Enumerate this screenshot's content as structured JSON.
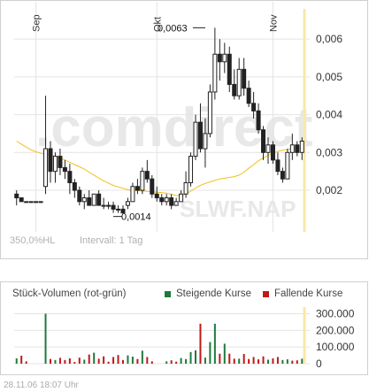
{
  "footer": {
    "range_label": "350,0%HL",
    "interval_label": "Intervall: 1 Tag"
  },
  "timestamp": "28.11.06   18:07 Uhr",
  "colors": {
    "up": "#1f7a3e",
    "down": "#c01818",
    "ma": "#f0c020",
    "highlight": "#fbe7a8",
    "watermark": "#e8e8e8",
    "watermark_accent": "#fbe4b8",
    "candle": "#222222"
  },
  "watermark": {
    "brand": ".comdirect",
    "symbol": "SLWF.NAP"
  },
  "chart_data": [
    {
      "type": "candlestick",
      "title": "",
      "x_labels": [
        "Sep",
        "Okt",
        "Nov"
      ],
      "ylim": [
        0.0009,
        0.0068
      ],
      "y_ticks": [
        0.002,
        0.003,
        0.004,
        0.005,
        0.006
      ],
      "y_tick_labels": [
        "0,002",
        "0,003",
        "0,004",
        "0,005",
        "0,006"
      ],
      "annotations": [
        {
          "text": "0,0063",
          "value": 0.0063,
          "kind": "max"
        },
        {
          "text": "0,0014",
          "value": 0.0014,
          "kind": "min"
        }
      ],
      "month_starts": [
        4,
        29,
        53
      ],
      "ohlc": [
        [
          0.0019,
          0.002,
          0.0016,
          0.0018
        ],
        [
          0.0018,
          0.0018,
          0.0017,
          0.0017
        ],
        [
          0.0017,
          0.0017,
          0.0017,
          0.0017
        ],
        [
          0.0017,
          0.0017,
          0.0017,
          0.0017
        ],
        [
          0.0017,
          0.0017,
          0.0017,
          0.0017
        ],
        [
          0.0017,
          0.0017,
          0.0017,
          0.0017
        ],
        [
          0.0021,
          0.0045,
          0.0019,
          0.0031
        ],
        [
          0.0031,
          0.0033,
          0.0022,
          0.0025
        ],
        [
          0.0025,
          0.003,
          0.0022,
          0.0029
        ],
        [
          0.0029,
          0.0031,
          0.0024,
          0.0026
        ],
        [
          0.0026,
          0.0028,
          0.0023,
          0.0025
        ],
        [
          0.0025,
          0.0027,
          0.0019,
          0.0022
        ],
        [
          0.0022,
          0.0023,
          0.0018,
          0.002
        ],
        [
          0.002,
          0.0021,
          0.0016,
          0.0017
        ],
        [
          0.0017,
          0.0019,
          0.0015,
          0.0018
        ],
        [
          0.0018,
          0.002,
          0.0016,
          0.0016
        ],
        [
          0.0016,
          0.0019,
          0.0016,
          0.0019
        ],
        [
          0.0019,
          0.002,
          0.0016,
          0.0016
        ],
        [
          0.0016,
          0.0018,
          0.0015,
          0.0016
        ],
        [
          0.0016,
          0.0017,
          0.0015,
          0.0016
        ],
        [
          0.0016,
          0.0017,
          0.0014,
          0.0015
        ],
        [
          0.0015,
          0.0016,
          0.0014,
          0.0015
        ],
        [
          0.0015,
          0.0016,
          0.0014,
          0.0014
        ],
        [
          0.0016,
          0.0018,
          0.0015,
          0.0017
        ],
        [
          0.0017,
          0.0022,
          0.0017,
          0.0021
        ],
        [
          0.0021,
          0.0023,
          0.0019,
          0.002
        ],
        [
          0.002,
          0.0026,
          0.0019,
          0.0025
        ],
        [
          0.0025,
          0.0028,
          0.0022,
          0.0023
        ],
        [
          0.0023,
          0.0024,
          0.0018,
          0.0019
        ],
        [
          0.0019,
          0.0021,
          0.0017,
          0.0018
        ],
        [
          0.0018,
          0.0019,
          0.0016,
          0.0017
        ],
        [
          0.0017,
          0.0019,
          0.0016,
          0.0018
        ],
        [
          0.0018,
          0.0019,
          0.0015,
          0.0016
        ],
        [
          0.0016,
          0.0018,
          0.0016,
          0.0017
        ],
        [
          0.0017,
          0.002,
          0.0017,
          0.0019
        ],
        [
          0.0019,
          0.0025,
          0.0018,
          0.0022
        ],
        [
          0.0022,
          0.003,
          0.0021,
          0.0029
        ],
        [
          0.0029,
          0.004,
          0.0028,
          0.0038
        ],
        [
          0.0038,
          0.0043,
          0.003,
          0.0031
        ],
        [
          0.0031,
          0.0039,
          0.0026,
          0.0035
        ],
        [
          0.0035,
          0.0048,
          0.0034,
          0.0046
        ],
        [
          0.0046,
          0.0063,
          0.0044,
          0.0056
        ],
        [
          0.0056,
          0.006,
          0.0049,
          0.0054
        ],
        [
          0.0054,
          0.0059,
          0.0051,
          0.0056
        ],
        [
          0.0056,
          0.0058,
          0.0046,
          0.0048
        ],
        [
          0.0048,
          0.0052,
          0.0044,
          0.0045
        ],
        [
          0.0045,
          0.0055,
          0.0044,
          0.0052
        ],
        [
          0.0052,
          0.0055,
          0.0045,
          0.0047
        ],
        [
          0.0047,
          0.0049,
          0.0042,
          0.0043
        ],
        [
          0.0043,
          0.0046,
          0.0039,
          0.0041
        ],
        [
          0.0041,
          0.0043,
          0.0035,
          0.0036
        ],
        [
          0.0036,
          0.0037,
          0.0028,
          0.003
        ],
        [
          0.003,
          0.0034,
          0.0027,
          0.0032
        ],
        [
          0.0032,
          0.0033,
          0.0027,
          0.0028
        ],
        [
          0.0028,
          0.003,
          0.0024,
          0.0025
        ],
        [
          0.0025,
          0.0026,
          0.0022,
          0.0023
        ],
        [
          0.0023,
          0.0031,
          0.0023,
          0.003
        ],
        [
          0.003,
          0.0035,
          0.0028,
          0.0032
        ],
        [
          0.0032,
          0.0033,
          0.0029,
          0.003
        ],
        [
          0.003,
          0.0034,
          0.0028,
          0.0033
        ]
      ],
      "moving_average": [
        0.0033,
        0.00322,
        0.00314,
        0.00307,
        0.00302,
        0.00298,
        0.00295,
        0.00293,
        0.0029,
        0.00286,
        0.0028,
        0.00274,
        0.00268,
        0.00262,
        0.00256,
        0.00248,
        0.0024,
        0.00232,
        0.00225,
        0.00219,
        0.00213,
        0.00209,
        0.00205,
        0.00202,
        0.002,
        0.00199,
        0.00198,
        0.00197,
        0.00196,
        0.00195,
        0.00194,
        0.00192,
        0.00189,
        0.00186,
        0.00186,
        0.0019,
        0.00198,
        0.00206,
        0.00213,
        0.00218,
        0.00222,
        0.00226,
        0.0023,
        0.00232,
        0.00234,
        0.00236,
        0.0024,
        0.00248,
        0.00258,
        0.00268,
        0.00278,
        0.00286,
        0.00292,
        0.00298,
        0.00303,
        0.00306,
        0.00308,
        0.0031,
        0.00312,
        0.00313
      ]
    },
    {
      "type": "bar",
      "title": "Stück-Volumen (rot-grün)",
      "series": [
        {
          "name": "Steigende Kurse",
          "color": "#1f7a3e"
        },
        {
          "name": "Fallende Kurse",
          "color": "#c01818"
        }
      ],
      "ylim": [
        0,
        340000
      ],
      "y_ticks": [
        0,
        100000,
        200000,
        300000
      ],
      "y_tick_labels": [
        "0",
        "100.000",
        "200.000",
        "300.000"
      ],
      "values": [
        [
          1,
          32000
        ],
        [
          0,
          48000
        ],
        [
          0,
          14000
        ],
        [
          0,
          0
        ],
        [
          0,
          0
        ],
        [
          0,
          0
        ],
        [
          1,
          300000
        ],
        [
          0,
          28000
        ],
        [
          1,
          22000
        ],
        [
          0,
          35000
        ],
        [
          0,
          22000
        ],
        [
          0,
          32000
        ],
        [
          0,
          10000
        ],
        [
          0,
          36000
        ],
        [
          1,
          24000
        ],
        [
          0,
          55000
        ],
        [
          1,
          66000
        ],
        [
          0,
          30000
        ],
        [
          0,
          44000
        ],
        [
          0,
          12000
        ],
        [
          0,
          40000
        ],
        [
          0,
          52000
        ],
        [
          0,
          22000
        ],
        [
          1,
          50000
        ],
        [
          1,
          42000
        ],
        [
          0,
          28000
        ],
        [
          1,
          78000
        ],
        [
          0,
          40000
        ],
        [
          0,
          14000
        ],
        [
          0,
          0
        ],
        [
          0,
          0
        ],
        [
          1,
          14000
        ],
        [
          0,
          20000
        ],
        [
          0,
          12000
        ],
        [
          1,
          34000
        ],
        [
          1,
          28000
        ],
        [
          1,
          70000
        ],
        [
          1,
          80000
        ],
        [
          0,
          240000
        ],
        [
          1,
          36000
        ],
        [
          1,
          130000
        ],
        [
          1,
          240000
        ],
        [
          0,
          60000
        ],
        [
          1,
          120000
        ],
        [
          0,
          60000
        ],
        [
          0,
          30000
        ],
        [
          1,
          30000
        ],
        [
          0,
          58000
        ],
        [
          0,
          28000
        ],
        [
          0,
          40000
        ],
        [
          0,
          26000
        ],
        [
          0,
          44000
        ],
        [
          1,
          24000
        ],
        [
          0,
          32000
        ],
        [
          0,
          40000
        ],
        [
          1,
          22000
        ],
        [
          1,
          26000
        ],
        [
          0,
          18000
        ],
        [
          0,
          20000
        ],
        [
          1,
          30000
        ]
      ]
    }
  ]
}
